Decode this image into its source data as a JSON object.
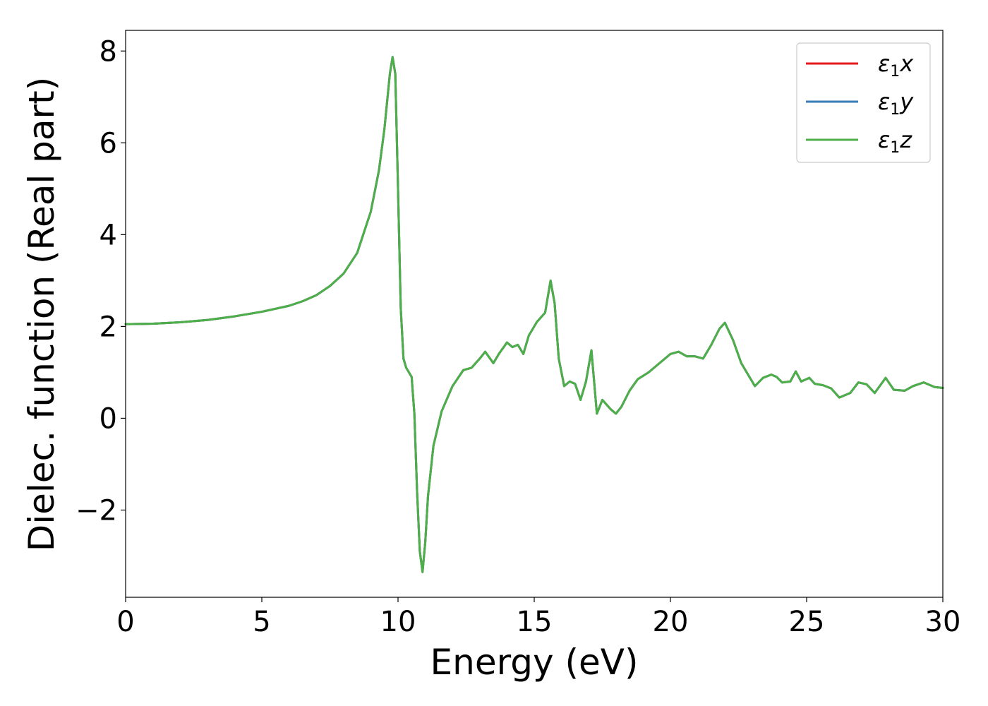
{
  "chart_data": {
    "type": "line",
    "title": "",
    "xlabel": "Energy (eV)",
    "ylabel": "Dielec. function (Real part)",
    "xlim": [
      0,
      30
    ],
    "ylim": [
      -3.9,
      8.45
    ],
    "xticks": [
      0,
      5,
      10,
      15,
      20,
      25,
      30
    ],
    "xtick_labels": [
      "0",
      "5",
      "10",
      "15",
      "20",
      "25",
      "30"
    ],
    "yticks": [
      -2,
      0,
      2,
      4,
      6,
      8
    ],
    "ytick_labels": [
      "−2",
      "0",
      "2",
      "4",
      "6",
      "8"
    ],
    "grid": false,
    "legend_position": "top-right",
    "series": [
      {
        "name": "ε1x",
        "legend_main": "ε",
        "legend_sub": "1",
        "legend_tail": "x",
        "color": "#e41a1c",
        "x": [
          0,
          1,
          2,
          3,
          4,
          5,
          6,
          6.5,
          7,
          7.5,
          8,
          8.5,
          9,
          9.3,
          9.5,
          9.7,
          9.8,
          9.9,
          10.0,
          10.1,
          10.2,
          10.3,
          10.5,
          10.6,
          10.7,
          10.8,
          10.9,
          11.0,
          11.1,
          11.3,
          11.6,
          12.0,
          12.4,
          12.7,
          13.0,
          13.2,
          13.5,
          13.7,
          14.0,
          14.2,
          14.4,
          14.6,
          14.8,
          15.1,
          15.4,
          15.6,
          15.75,
          15.9,
          16.1,
          16.3,
          16.5,
          16.7,
          16.9,
          17.1,
          17.3,
          17.5,
          17.8,
          18.0,
          18.2,
          18.5,
          18.8,
          19.2,
          19.6,
          20.0,
          20.3,
          20.6,
          20.9,
          21.2,
          21.5,
          21.8,
          22.0,
          22.3,
          22.6,
          22.9,
          23.1,
          23.4,
          23.7,
          23.9,
          24.1,
          24.4,
          24.6,
          24.8,
          25.1,
          25.3,
          25.6,
          25.9,
          26.2,
          26.6,
          26.9,
          27.2,
          27.5,
          27.9,
          28.2,
          28.6,
          28.9,
          29.3,
          29.7,
          30.0
        ],
        "y": [
          2.05,
          2.06,
          2.09,
          2.14,
          2.22,
          2.32,
          2.45,
          2.55,
          2.68,
          2.88,
          3.15,
          3.6,
          4.5,
          5.4,
          6.3,
          7.5,
          7.87,
          7.5,
          5.0,
          2.4,
          1.3,
          1.1,
          0.9,
          0.1,
          -1.6,
          -2.9,
          -3.35,
          -2.7,
          -1.7,
          -0.6,
          0.15,
          0.7,
          1.05,
          1.1,
          1.3,
          1.45,
          1.2,
          1.4,
          1.65,
          1.55,
          1.6,
          1.4,
          1.8,
          2.1,
          2.3,
          3.0,
          2.5,
          1.3,
          0.7,
          0.8,
          0.75,
          0.4,
          0.8,
          1.48,
          0.1,
          0.4,
          0.2,
          0.1,
          0.25,
          0.6,
          0.85,
          1.0,
          1.2,
          1.4,
          1.45,
          1.35,
          1.35,
          1.3,
          1.6,
          1.95,
          2.08,
          1.7,
          1.2,
          0.9,
          0.7,
          0.88,
          0.95,
          0.9,
          0.78,
          0.8,
          1.02,
          0.8,
          0.88,
          0.75,
          0.72,
          0.65,
          0.45,
          0.55,
          0.78,
          0.74,
          0.55,
          0.88,
          0.62,
          0.6,
          0.7,
          0.78,
          0.68,
          0.66
        ]
      },
      {
        "name": "ε1y",
        "legend_main": "ε",
        "legend_sub": "1",
        "legend_tail": "y",
        "color": "#377eb8",
        "x": [
          0,
          1,
          2,
          3,
          4,
          5,
          6,
          6.5,
          7,
          7.5,
          8,
          8.5,
          9,
          9.3,
          9.5,
          9.7,
          9.8,
          9.9,
          10.0,
          10.1,
          10.2,
          10.3,
          10.5,
          10.6,
          10.7,
          10.8,
          10.9,
          11.0,
          11.1,
          11.3,
          11.6,
          12.0,
          12.4,
          12.7,
          13.0,
          13.2,
          13.5,
          13.7,
          14.0,
          14.2,
          14.4,
          14.6,
          14.8,
          15.1,
          15.4,
          15.6,
          15.75,
          15.9,
          16.1,
          16.3,
          16.5,
          16.7,
          16.9,
          17.1,
          17.3,
          17.5,
          17.8,
          18.0,
          18.2,
          18.5,
          18.8,
          19.2,
          19.6,
          20.0,
          20.3,
          20.6,
          20.9,
          21.2,
          21.5,
          21.8,
          22.0,
          22.3,
          22.6,
          22.9,
          23.1,
          23.4,
          23.7,
          23.9,
          24.1,
          24.4,
          24.6,
          24.8,
          25.1,
          25.3,
          25.6,
          25.9,
          26.2,
          26.6,
          26.9,
          27.2,
          27.5,
          27.9,
          28.2,
          28.6,
          28.9,
          29.3,
          29.7,
          30.0
        ],
        "y": [
          2.05,
          2.06,
          2.09,
          2.14,
          2.22,
          2.32,
          2.45,
          2.55,
          2.68,
          2.88,
          3.15,
          3.6,
          4.5,
          5.4,
          6.3,
          7.5,
          7.87,
          7.5,
          5.0,
          2.4,
          1.3,
          1.1,
          0.9,
          0.1,
          -1.6,
          -2.9,
          -3.35,
          -2.7,
          -1.7,
          -0.6,
          0.15,
          0.7,
          1.05,
          1.1,
          1.3,
          1.45,
          1.2,
          1.4,
          1.65,
          1.55,
          1.6,
          1.4,
          1.8,
          2.1,
          2.3,
          3.0,
          2.5,
          1.3,
          0.7,
          0.8,
          0.75,
          0.4,
          0.8,
          1.48,
          0.1,
          0.4,
          0.2,
          0.1,
          0.25,
          0.6,
          0.85,
          1.0,
          1.2,
          1.4,
          1.45,
          1.35,
          1.35,
          1.3,
          1.6,
          1.95,
          2.08,
          1.7,
          1.2,
          0.9,
          0.7,
          0.88,
          0.95,
          0.9,
          0.78,
          0.8,
          1.02,
          0.8,
          0.88,
          0.75,
          0.72,
          0.65,
          0.45,
          0.55,
          0.78,
          0.74,
          0.55,
          0.88,
          0.62,
          0.6,
          0.7,
          0.78,
          0.68,
          0.66
        ]
      },
      {
        "name": "ε1z",
        "legend_main": "ε",
        "legend_sub": "1",
        "legend_tail": "z",
        "color": "#4daf4a",
        "x": [
          0,
          1,
          2,
          3,
          4,
          5,
          6,
          6.5,
          7,
          7.5,
          8,
          8.5,
          9,
          9.3,
          9.5,
          9.7,
          9.8,
          9.9,
          10.0,
          10.1,
          10.2,
          10.3,
          10.5,
          10.6,
          10.7,
          10.8,
          10.9,
          11.0,
          11.1,
          11.3,
          11.6,
          12.0,
          12.4,
          12.7,
          13.0,
          13.2,
          13.5,
          13.7,
          14.0,
          14.2,
          14.4,
          14.6,
          14.8,
          15.1,
          15.4,
          15.6,
          15.75,
          15.9,
          16.1,
          16.3,
          16.5,
          16.7,
          16.9,
          17.1,
          17.3,
          17.5,
          17.8,
          18.0,
          18.2,
          18.5,
          18.8,
          19.2,
          19.6,
          20.0,
          20.3,
          20.6,
          20.9,
          21.2,
          21.5,
          21.8,
          22.0,
          22.3,
          22.6,
          22.9,
          23.1,
          23.4,
          23.7,
          23.9,
          24.1,
          24.4,
          24.6,
          24.8,
          25.1,
          25.3,
          25.6,
          25.9,
          26.2,
          26.6,
          26.9,
          27.2,
          27.5,
          27.9,
          28.2,
          28.6,
          28.9,
          29.3,
          29.7,
          30.0
        ],
        "y": [
          2.05,
          2.06,
          2.09,
          2.14,
          2.22,
          2.32,
          2.45,
          2.55,
          2.68,
          2.88,
          3.15,
          3.6,
          4.5,
          5.4,
          6.3,
          7.5,
          7.87,
          7.5,
          5.0,
          2.4,
          1.3,
          1.1,
          0.9,
          0.1,
          -1.6,
          -2.9,
          -3.35,
          -2.7,
          -1.7,
          -0.6,
          0.15,
          0.7,
          1.05,
          1.1,
          1.3,
          1.45,
          1.2,
          1.4,
          1.65,
          1.55,
          1.6,
          1.4,
          1.8,
          2.1,
          2.3,
          3.0,
          2.5,
          1.3,
          0.7,
          0.8,
          0.75,
          0.4,
          0.8,
          1.48,
          0.1,
          0.4,
          0.2,
          0.1,
          0.25,
          0.6,
          0.85,
          1.0,
          1.2,
          1.4,
          1.45,
          1.35,
          1.35,
          1.3,
          1.6,
          1.95,
          2.08,
          1.7,
          1.2,
          0.9,
          0.7,
          0.88,
          0.95,
          0.9,
          0.78,
          0.8,
          1.02,
          0.8,
          0.88,
          0.75,
          0.72,
          0.65,
          0.45,
          0.55,
          0.78,
          0.74,
          0.55,
          0.88,
          0.62,
          0.6,
          0.7,
          0.78,
          0.68,
          0.66
        ]
      }
    ]
  }
}
